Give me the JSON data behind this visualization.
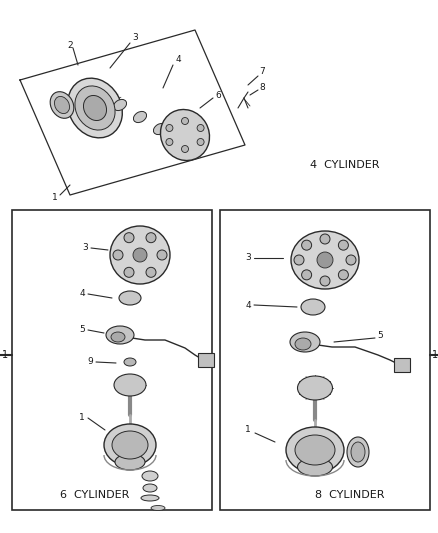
{
  "bg_color": "#f0f0f0",
  "line_color": "#2a2a2a",
  "text_color": "#1a1a1a",
  "fig_width": 4.39,
  "fig_height": 5.33,
  "label_4cyl": "4  CYLINDER",
  "label_6cyl": "6  CYLINDER",
  "label_8cyl": "8  CYLINDER"
}
